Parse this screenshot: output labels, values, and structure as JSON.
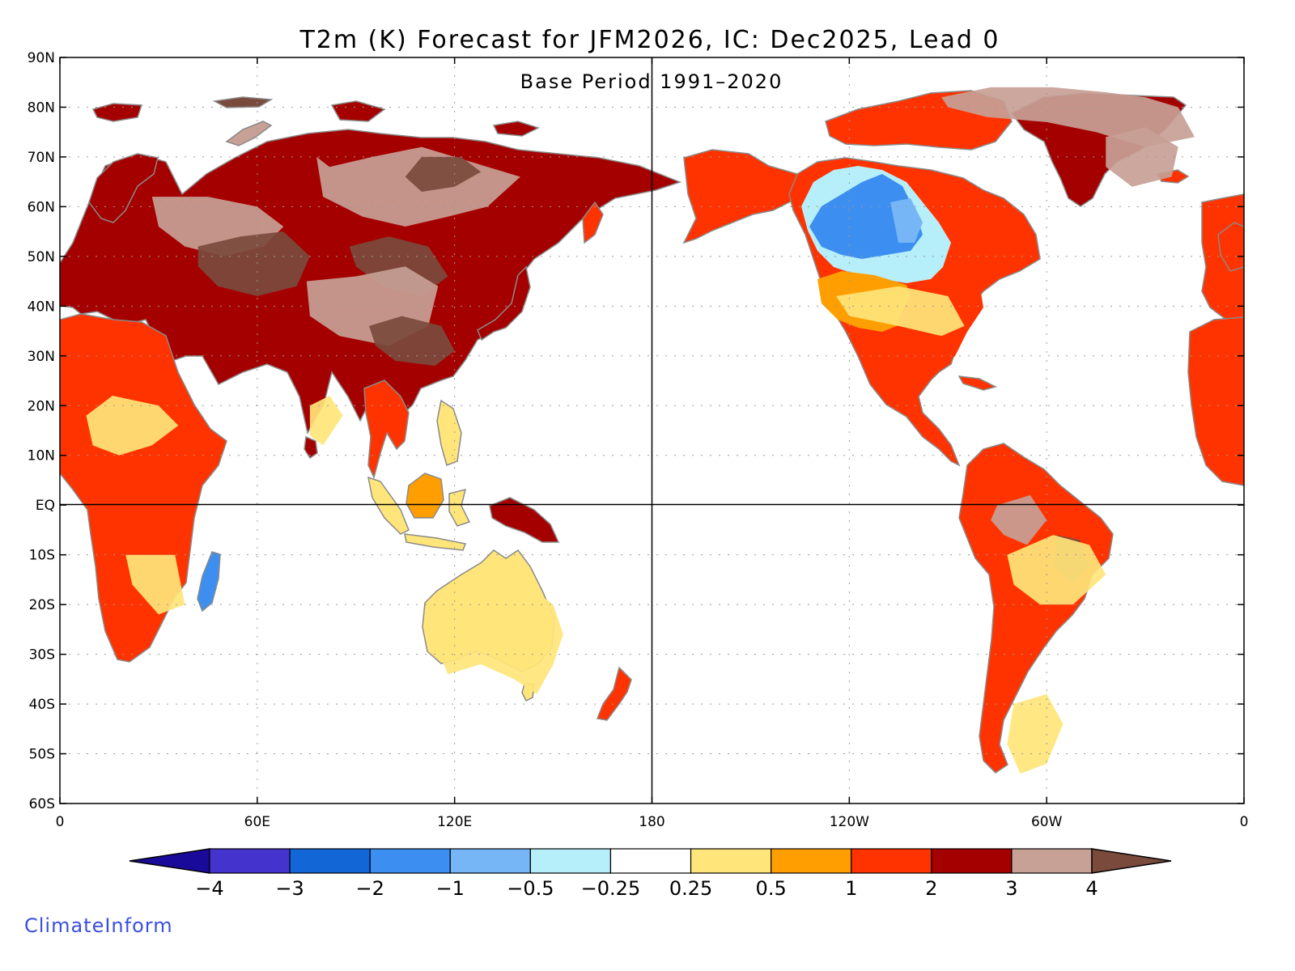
{
  "title": "T2m (K) Forecast for JFM2026, IC: Dec2025, Lead 0",
  "subtitle": "Base Period 1991–2020",
  "brand": "ClimateInform",
  "brand_color": "#3b4fe0",
  "axes": {
    "lat_labels": [
      "90N",
      "80N",
      "70N",
      "60N",
      "50N",
      "40N",
      "30N",
      "20N",
      "10N",
      "EQ",
      "10S",
      "20S",
      "30S",
      "40S",
      "50S",
      "60S"
    ],
    "lat_values": [
      90,
      80,
      70,
      60,
      50,
      40,
      30,
      20,
      10,
      0,
      -10,
      -20,
      -30,
      -40,
      -50,
      -60
    ],
    "lon_labels": [
      "0",
      "60E",
      "120E",
      "180",
      "120W",
      "60W",
      "0"
    ],
    "lon_values": [
      0,
      60,
      120,
      180,
      240,
      300,
      360
    ],
    "lat_range": [
      -60,
      90
    ],
    "lon_range": [
      0,
      360
    ],
    "grid": true
  },
  "colorbar": {
    "labels": [
      "−4",
      "−3",
      "−2",
      "−1",
      "−0.5",
      "−0.25",
      "0.25",
      "0.5",
      "1",
      "2",
      "3",
      "4"
    ],
    "colors": [
      "#1a0a9a",
      "#4433cc",
      "#1366d6",
      "#3c8ef0",
      "#76b6f6",
      "#b6eefa",
      "#ffffff",
      "#ffe57a",
      "#ff9e00",
      "#ff3300",
      "#a50000",
      "#c7a096",
      "#7a4a3c"
    ]
  },
  "map_data": {
    "type": "filled-anomaly-map",
    "variable": "T2m (K)",
    "regions": [
      {
        "color": "#c7a096",
        "lon": [
          78,
          82,
          95,
          110,
          120,
          130,
          140,
          130,
          118,
          105,
          92,
          80
        ],
        "lat": [
          70,
          68,
          70,
          72,
          70,
          68,
          66,
          60,
          58,
          56,
          58,
          62
        ]
      },
      {
        "color": "#7a4a3c",
        "lon": [
          105,
          110,
          122,
          128,
          120,
          110
        ],
        "lat": [
          66,
          70,
          70,
          67,
          64,
          63
        ]
      },
      {
        "color": "#c7a096",
        "lon": [
          28,
          45,
          60,
          68,
          62,
          50,
          38,
          30
        ],
        "lat": [
          62,
          62,
          60,
          56,
          52,
          50,
          52,
          56
        ]
      },
      {
        "color": "#7a4a3c",
        "lon": [
          42,
          55,
          68,
          76,
          72,
          60,
          48,
          42
        ],
        "lat": [
          52,
          54,
          55,
          50,
          44,
          42,
          44,
          48
        ]
      },
      {
        "color": "#7a4a3c",
        "lon": [
          88,
          100,
          112,
          118,
          110,
          98,
          90
        ],
        "lat": [
          52,
          54,
          52,
          46,
          42,
          44,
          48
        ]
      },
      {
        "color": "#c7a096",
        "lon": [
          75,
          90,
          105,
          115,
          112,
          100,
          85,
          76
        ],
        "lat": [
          45,
          46,
          48,
          44,
          36,
          32,
          34,
          38
        ]
      },
      {
        "color": "#7a4a3c",
        "lon": [
          94,
          104,
          116,
          120,
          114,
          102,
          96
        ],
        "lat": [
          36,
          38,
          36,
          31,
          28,
          29,
          32
        ]
      },
      {
        "color": "#c7a096",
        "lon": [
          268,
          283,
          302,
          318,
          330,
          340,
          345,
          330,
          315,
          300,
          282,
          270
        ],
        "lat": [
          82,
          84,
          84,
          83,
          82,
          80,
          74,
          72,
          75,
          77,
          78,
          80
        ]
      },
      {
        "color": "#c7a096",
        "lon": [
          318,
          330,
          340,
          338,
          326,
          318
        ],
        "lat": [
          74,
          76,
          72,
          66,
          64,
          68
        ]
      },
      {
        "color": "#c7a096",
        "lon": [
          285,
          295,
          300,
          294,
          287,
          283
        ],
        "lat": [
          0,
          2,
          -3,
          -8,
          -6,
          -3
        ]
      },
      {
        "color": "#7a4a3c",
        "lon": [
          303,
          310,
          313,
          308,
          302
        ],
        "lat": [
          -6,
          -7,
          -12,
          -16,
          -12
        ]
      },
      {
        "color": "#ffe57a",
        "lon": [
          8,
          16,
          30,
          36,
          28,
          18,
          10
        ],
        "lat": [
          18,
          22,
          20,
          16,
          12,
          10,
          12
        ]
      },
      {
        "color": "#ffe57a",
        "lon": [
          20,
          35,
          38,
          30,
          22
        ],
        "lat": [
          -10,
          -10,
          -20,
          -22,
          -16
        ]
      },
      {
        "color": "#ffe57a",
        "lon": [
          76,
          82,
          86,
          80,
          76
        ],
        "lat": [
          20,
          22,
          18,
          12,
          14
        ]
      },
      {
        "color": "#ffe57a",
        "lon": [
          114,
          124,
          138,
          150,
          153,
          150,
          145,
          138,
          128,
          118,
          114
        ],
        "lat": [
          -22,
          -16,
          -14,
          -20,
          -26,
          -32,
          -38,
          -35,
          -32,
          -34,
          -28
        ]
      },
      {
        "color": "#ffe57a",
        "lon": [
          236,
          255,
          270,
          275,
          268,
          255,
          240
        ],
        "lat": [
          42,
          44,
          42,
          36,
          34,
          36,
          38
        ]
      },
      {
        "color": "#ffe57a",
        "lon": [
          288,
          302,
          313,
          318,
          308,
          298,
          290
        ],
        "lat": [
          -10,
          -6,
          -8,
          -14,
          -20,
          -20,
          -16
        ]
      },
      {
        "color": "#ffe57a",
        "lon": [
          290,
          300,
          305,
          300,
          292,
          288
        ],
        "lat": [
          -40,
          -38,
          -44,
          -52,
          -54,
          -48
        ]
      }
    ]
  }
}
